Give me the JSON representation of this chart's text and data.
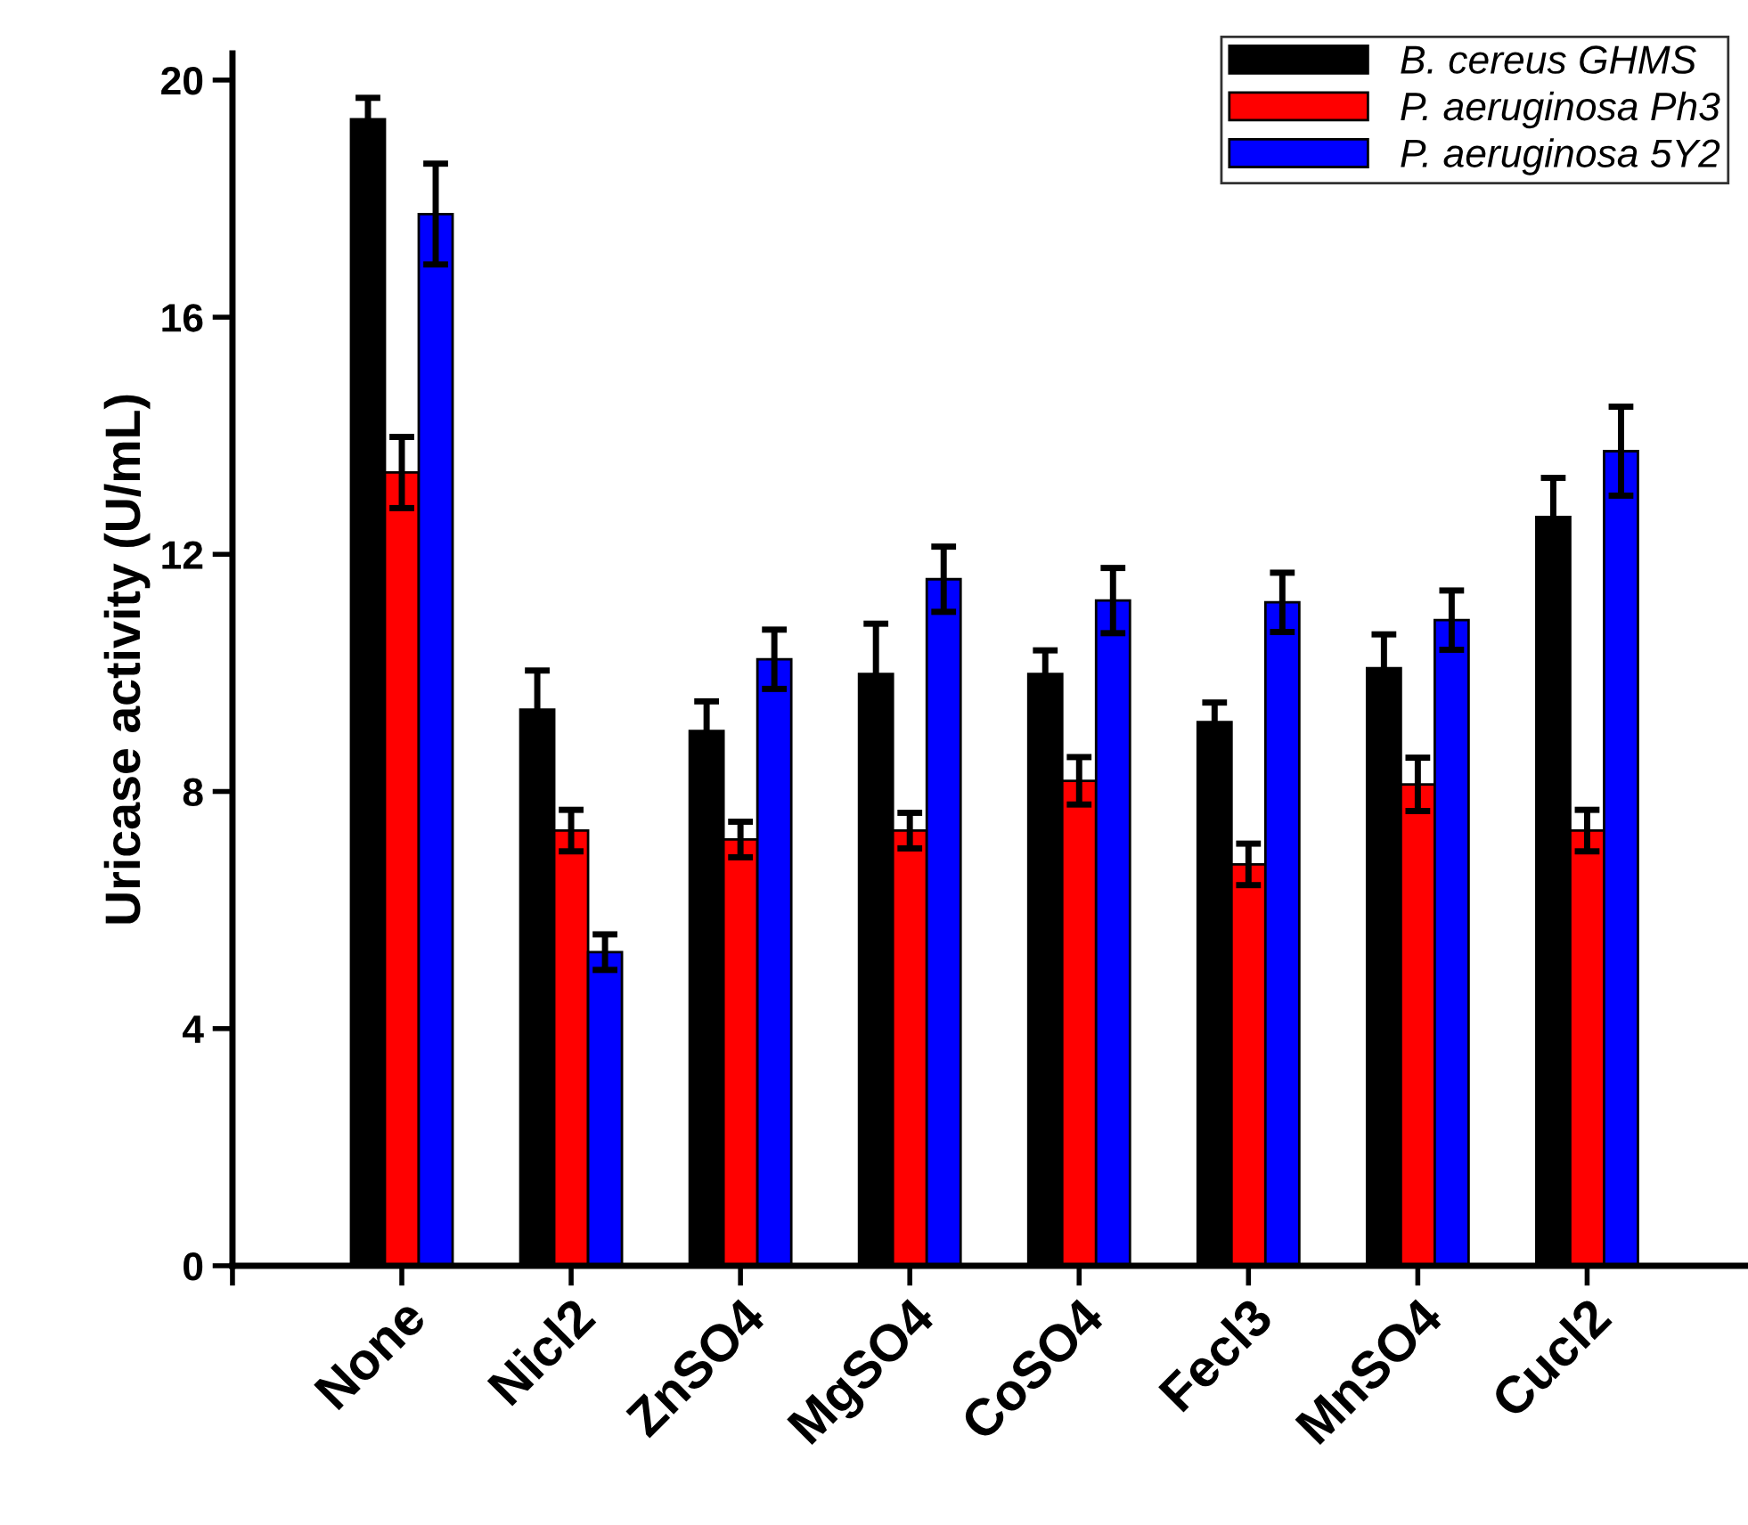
{
  "chart_data": {
    "type": "bar",
    "categories": [
      "None",
      "Nicl2",
      "ZnSO4",
      "MgSO4",
      "CoSO4",
      "Fecl3",
      "MnSO4",
      "Cucl2"
    ],
    "series": [
      {
        "name": "B. cereus GHMS",
        "color": "#000000",
        "values": [
          19.34,
          9.38,
          9.02,
          9.98,
          9.98,
          9.17,
          10.08,
          12.63
        ],
        "errors": [
          0.36,
          0.66,
          0.5,
          0.85,
          0.4,
          0.33,
          0.57,
          0.66
        ]
      },
      {
        "name": "P. aeruginosa Ph3",
        "color": "#ff0000",
        "values": [
          13.38,
          7.34,
          7.19,
          7.34,
          8.18,
          6.77,
          8.12,
          7.34
        ],
        "errors": [
          0.6,
          0.35,
          0.3,
          0.3,
          0.4,
          0.35,
          0.45,
          0.35
        ]
      },
      {
        "name": "P. aeruginosa 5Y2",
        "color": "#0000ff",
        "values": [
          17.74,
          5.29,
          10.23,
          11.58,
          11.22,
          11.19,
          10.89,
          13.74
        ],
        "errors": [
          0.85,
          0.3,
          0.5,
          0.55,
          0.55,
          0.5,
          0.5,
          0.75
        ]
      }
    ],
    "ylabel": "Uricase activity (U/mL)",
    "ylim": [
      0,
      20.45
    ],
    "yticks": [
      0,
      4,
      8,
      12,
      16,
      20
    ],
    "grid": false,
    "legend": "top right"
  }
}
